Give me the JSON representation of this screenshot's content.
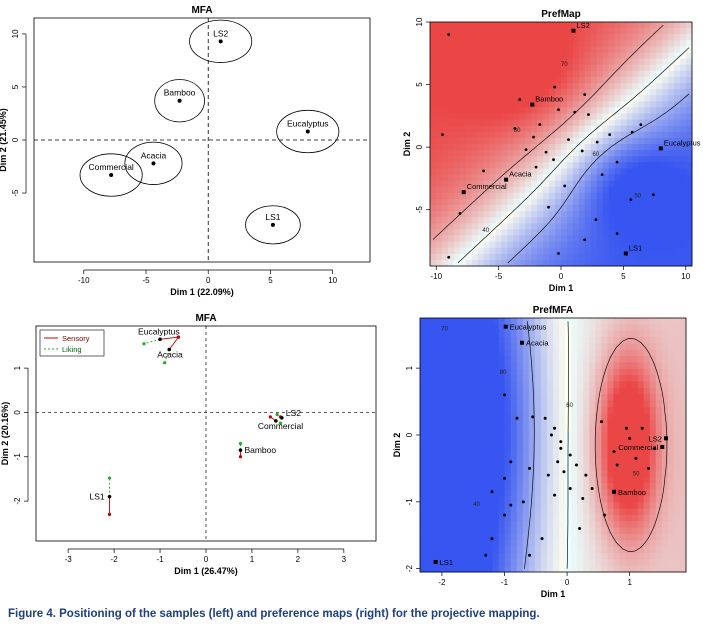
{
  "figure_label": "Figure 4.",
  "caption_text": "Positioning of the samples (left) and preference maps (right) for the projective mapping.",
  "chart_data": [
    {
      "type": "scatter",
      "title": "MFA",
      "xlabel": "Dim 1 (22.09%)",
      "ylabel": "Dim 2 (21.45%)",
      "xlim": [
        -14,
        13
      ],
      "ylim": [
        -11.5,
        11.5
      ],
      "xticks": [
        -10,
        -5,
        0,
        5,
        10
      ],
      "yticks": [
        -5,
        0,
        5,
        10
      ],
      "points": [
        {
          "label": "LS2",
          "x": 1.0,
          "y": 9.3,
          "rx": 2.5,
          "ry": 2.0
        },
        {
          "label": "Bamboo",
          "x": -2.3,
          "y": 3.7,
          "rx": 2.0,
          "ry": 2.0
        },
        {
          "label": "Eucalyptus",
          "x": 8.0,
          "y": 0.8,
          "rx": 2.5,
          "ry": 2.0
        },
        {
          "label": "Acacia",
          "x": -4.4,
          "y": -2.2,
          "rx": 2.3,
          "ry": 2.0
        },
        {
          "label": "Commercial",
          "x": -7.8,
          "y": -3.3,
          "rx": 2.5,
          "ry": 2.0
        },
        {
          "label": "LS1",
          "x": 5.2,
          "y": -8.0,
          "rx": 2.2,
          "ry": 1.8
        }
      ]
    },
    {
      "type": "heatmap",
      "title": "PrefMap",
      "xlabel": "Dim 1",
      "ylabel": "Dim 2",
      "xlim": [
        -10.5,
        10.5
      ],
      "ylim": [
        -9.5,
        10
      ],
      "xticks": [
        -10,
        -5,
        0,
        5,
        10
      ],
      "yticks": [
        -5,
        0,
        5,
        10
      ],
      "labeled_points": [
        {
          "label": "LS2",
          "x": 1.0,
          "y": 9.3
        },
        {
          "label": "Bamboo",
          "x": -2.3,
          "y": 3.4
        },
        {
          "label": "Eucalyptus",
          "x": 8.0,
          "y": -0.1
        },
        {
          "label": "Acacia",
          "x": -4.4,
          "y": -2.6
        },
        {
          "label": "Commercial",
          "x": -7.8,
          "y": -3.6
        },
        {
          "label": "LS1",
          "x": 5.2,
          "y": -8.5
        }
      ],
      "consumer_points": [
        [
          -2.2,
          0.8
        ],
        [
          -2.8,
          -0.2
        ],
        [
          -1.2,
          -0.4
        ],
        [
          -0.6,
          -1.0
        ],
        [
          -1.7,
          1.8
        ],
        [
          -0.2,
          3.0
        ],
        [
          1.1,
          2.8
        ],
        [
          2.2,
          2.6
        ],
        [
          -3.3,
          3.8
        ],
        [
          -0.5,
          4.8
        ],
        [
          1.7,
          -0.3
        ],
        [
          3.3,
          -2.2
        ],
        [
          4.5,
          -1.2
        ],
        [
          5.7,
          1.2
        ],
        [
          6.4,
          1.8
        ],
        [
          0.3,
          -3.1
        ],
        [
          -1.0,
          -4.8
        ],
        [
          2.8,
          -5.8
        ],
        [
          1.9,
          -7.4
        ],
        [
          -0.2,
          -8.5
        ],
        [
          -6.2,
          -1.9
        ],
        [
          -8.1,
          -5.3
        ],
        [
          -9.0,
          -8.8
        ],
        [
          -9.0,
          9.0
        ],
        [
          -9.5,
          1.0
        ],
        [
          2.9,
          0.4
        ],
        [
          3.9,
          1.0
        ],
        [
          -2.0,
          -1.6
        ],
        [
          0.6,
          0.6
        ],
        [
          1.9,
          4.2
        ],
        [
          -3.7,
          1.5
        ],
        [
          7.4,
          -3.8
        ],
        [
          4.5,
          -6.9
        ],
        [
          5.6,
          -4.2
        ]
      ],
      "contour_labels": [
        "70",
        "80",
        "60",
        "50",
        "40"
      ]
    },
    {
      "type": "scatter",
      "title": "MFA",
      "xlabel": "Dim 1 (26.47%)",
      "ylabel": "Dim 2 (20.16%)",
      "xlim": [
        -3.7,
        3.7
      ],
      "ylim": [
        -2.9,
        1.95
      ],
      "xticks": [
        -3,
        -2,
        -1,
        0,
        1,
        2,
        3
      ],
      "yticks": [
        -2,
        -1,
        0,
        1
      ],
      "legend": [
        "Sensory",
        "Liking"
      ],
      "legend_position": "top-left",
      "points": [
        {
          "label": "Eucalyptus",
          "x": -1.0,
          "y": 1.65,
          "sensory": [
            -0.6,
            1.7
          ],
          "liking": [
            -1.35,
            1.55
          ]
        },
        {
          "label": "Acacia",
          "x": -0.8,
          "y": 1.42,
          "sensory": [
            -0.6,
            1.7
          ],
          "liking": [
            -0.9,
            1.12
          ]
        },
        {
          "label": "LS2",
          "x": 1.65,
          "y": -0.12,
          "sensory": [
            1.62,
            -0.1
          ],
          "liking": [
            1.55,
            -0.05
          ]
        },
        {
          "label": "Commercial",
          "x": 1.52,
          "y": -0.19,
          "sensory": [
            1.4,
            -0.1
          ],
          "liking": [
            1.62,
            -0.24
          ]
        },
        {
          "label": "Bamboo",
          "x": 0.75,
          "y": -0.85,
          "sensory": [
            0.75,
            -1.0
          ],
          "liking": [
            0.75,
            -0.7
          ]
        },
        {
          "label": "LS1",
          "x": -2.1,
          "y": -1.9,
          "sensory": [
            -2.1,
            -2.3
          ],
          "liking": [
            -2.1,
            -1.48
          ]
        }
      ]
    },
    {
      "type": "heatmap",
      "title": "PrefMFA",
      "xlabel": "Dim 1",
      "ylabel": "Dim 2",
      "xlim": [
        -2.35,
        1.9
      ],
      "ylim": [
        -2.05,
        1.75
      ],
      "xticks": [
        -2,
        -1,
        0,
        1
      ],
      "yticks": [
        -2,
        -1,
        0,
        1
      ],
      "labeled_points": [
        {
          "label": "Eucalyptus",
          "x": -0.98,
          "y": 1.62
        },
        {
          "label": "Acacia",
          "x": -0.72,
          "y": 1.38
        },
        {
          "label": "LS2",
          "x": 1.58,
          "y": -0.05
        },
        {
          "label": "Commercial",
          "x": 1.52,
          "y": -0.18
        },
        {
          "label": "Bamboo",
          "x": 0.75,
          "y": -0.85
        },
        {
          "label": "LS1",
          "x": -2.1,
          "y": -1.9
        }
      ],
      "consumer_points": [
        [
          -0.55,
          0.27
        ],
        [
          -0.35,
          0.25
        ],
        [
          -0.8,
          0.25
        ],
        [
          -0.2,
          0.1
        ],
        [
          -0.1,
          -0.1
        ],
        [
          -0.15,
          -0.4
        ],
        [
          -0.05,
          -0.55
        ],
        [
          0.05,
          -0.3
        ],
        [
          0.15,
          -0.45
        ],
        [
          -0.3,
          -0.6
        ],
        [
          0.3,
          -0.6
        ],
        [
          0.4,
          -0.8
        ],
        [
          -0.2,
          -0.9
        ],
        [
          0.05,
          -0.8
        ],
        [
          0.25,
          -0.95
        ],
        [
          -0.6,
          -0.5
        ],
        [
          -0.9,
          -0.4
        ],
        [
          -1.0,
          -0.65
        ],
        [
          -0.9,
          -1.05
        ],
        [
          -0.7,
          -1.0
        ],
        [
          -1.0,
          -1.2
        ],
        [
          -1.2,
          -1.55
        ],
        [
          -1.3,
          -1.8
        ],
        [
          -1.2,
          -0.85
        ],
        [
          0.55,
          0.2
        ],
        [
          0.8,
          -0.45
        ],
        [
          1.0,
          -0.05
        ],
        [
          1.1,
          -0.35
        ],
        [
          1.3,
          -0.5
        ],
        [
          1.2,
          0.1
        ],
        [
          0.95,
          0.1
        ],
        [
          -1.0,
          0.6
        ],
        [
          -0.25,
          0.0
        ],
        [
          0.6,
          -1.2
        ],
        [
          0.2,
          -1.4
        ],
        [
          -0.4,
          -1.55
        ],
        [
          -0.6,
          -1.8
        ],
        [
          -0.1,
          -0.2
        ],
        [
          0.75,
          -0.25
        ],
        [
          1.4,
          -0.2
        ]
      ],
      "contour_labels": [
        "70",
        "80",
        "60",
        "50",
        "40"
      ]
    }
  ]
}
